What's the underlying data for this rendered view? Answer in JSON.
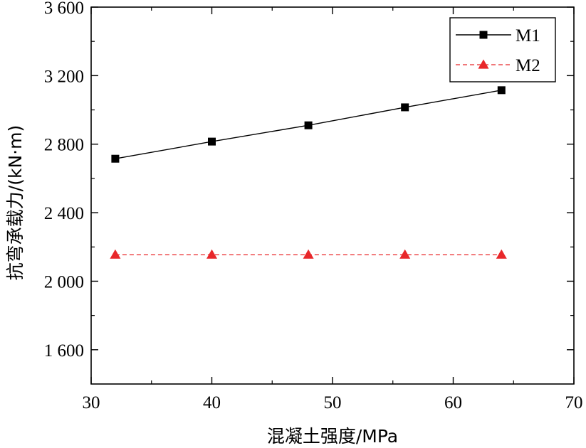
{
  "chart_data": {
    "type": "line",
    "xlabel": "混凝土强度/MPa",
    "ylabel": "抗弯承载力/(kN·m)",
    "xlim": [
      30,
      70
    ],
    "ylim": [
      1400,
      3600
    ],
    "x_ticks": [
      30,
      40,
      50,
      60,
      70
    ],
    "x_tick_labels": [
      "30",
      "40",
      "50",
      "60",
      "70"
    ],
    "y_ticks": [
      1600,
      2000,
      2400,
      2800,
      3200,
      3600
    ],
    "y_tick_labels": [
      "1 600",
      "2 000",
      "2 400",
      "2 800",
      "3 200",
      "3 600"
    ],
    "grid": false,
    "legend_position": "top-right",
    "series": [
      {
        "name": "M1",
        "color": "#000000",
        "line_style": "solid",
        "marker": "square",
        "x": [
          32,
          40,
          48,
          56,
          64
        ],
        "y": [
          2715,
          2815,
          2910,
          3015,
          3115
        ]
      },
      {
        "name": "M2",
        "color": "#e8272a",
        "line_style": "dashed",
        "marker": "triangle",
        "x": [
          32,
          40,
          48,
          56,
          64
        ],
        "y": [
          2155,
          2155,
          2155,
          2155,
          2155
        ]
      }
    ]
  }
}
